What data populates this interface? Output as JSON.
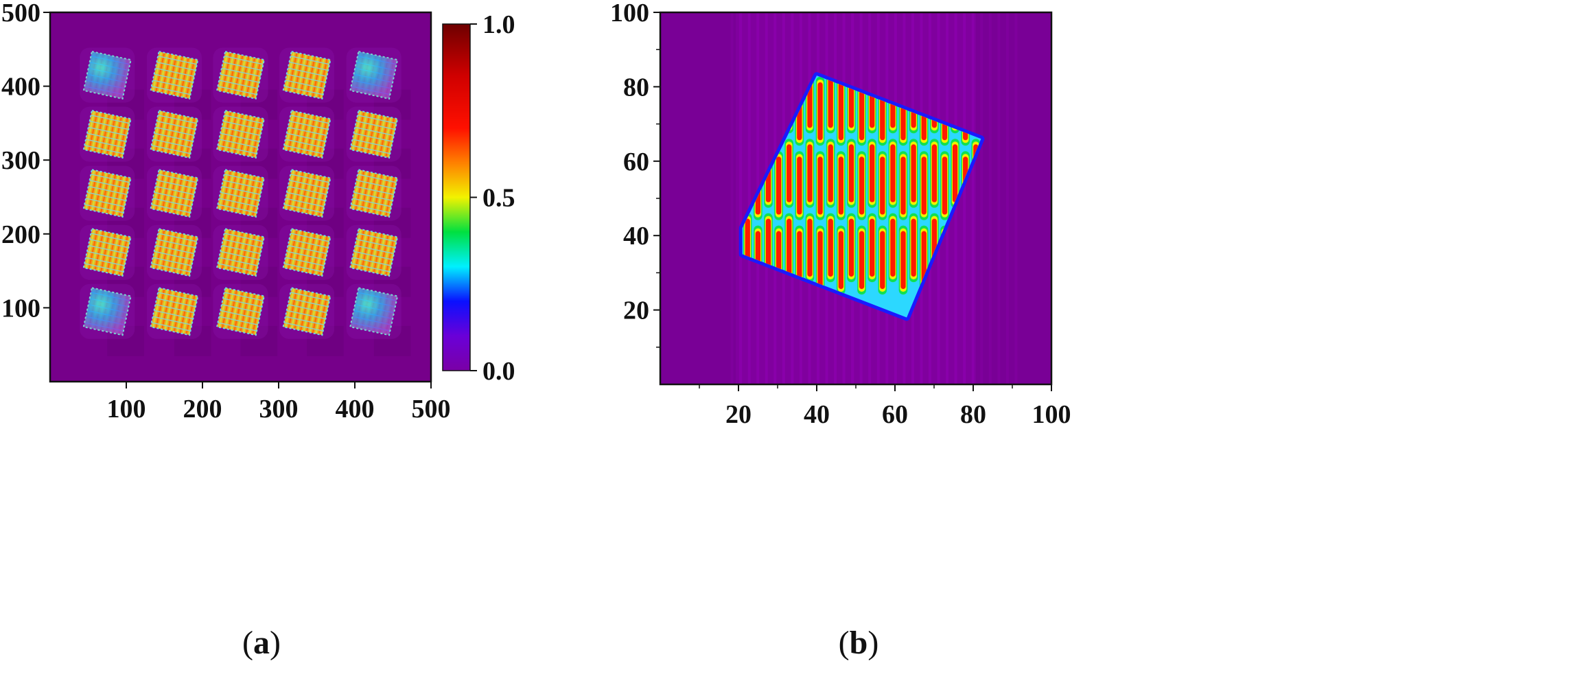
{
  "figure": {
    "panels": [
      {
        "label_open": "(",
        "label_letter": "a",
        "label_close": ")"
      },
      {
        "label_open": "(",
        "label_letter": "b",
        "label_close": ")"
      }
    ]
  },
  "chart_data": [
    {
      "type": "heatmap",
      "title": "",
      "xlabel": "",
      "ylabel": "",
      "xlim": [
        0,
        500
      ],
      "ylim": [
        0,
        500
      ],
      "x_ticks": [
        100,
        200,
        300,
        400,
        500
      ],
      "y_ticks": [
        100,
        200,
        300,
        400,
        500
      ],
      "x_tick_labels": [
        "100",
        "200",
        "300",
        "400",
        "500"
      ],
      "y_tick_labels": [
        "100",
        "200",
        "300",
        "400",
        "500"
      ],
      "grid": false,
      "background_value": 0.02,
      "spot_rows": [
        415,
        335,
        255,
        175,
        95
      ],
      "spot_cols": [
        75,
        163,
        250,
        337,
        425
      ],
      "spot_rotation_deg": -12,
      "spot_mean_value": 0.55,
      "corner_spot_mean_value": 0.3,
      "colorbar": {
        "min": 0.0,
        "max": 1.0,
        "ticks": [
          0.0,
          0.5,
          1.0
        ],
        "tick_labels": [
          "0.0",
          "0.5",
          "1.0"
        ],
        "colormap": [
          {
            "value": 0.0,
            "color": "#7a00a6"
          },
          {
            "value": 0.1,
            "color": "#6a00d8"
          },
          {
            "value": 0.2,
            "color": "#0a10ff"
          },
          {
            "value": 0.3,
            "color": "#00f0ff"
          },
          {
            "value": 0.4,
            "color": "#00e040"
          },
          {
            "value": 0.5,
            "color": "#f2f200"
          },
          {
            "value": 0.6,
            "color": "#ff8000"
          },
          {
            "value": 0.7,
            "color": "#ff1000"
          },
          {
            "value": 0.85,
            "color": "#d00000"
          },
          {
            "value": 1.0,
            "color": "#6e0000"
          }
        ]
      }
    },
    {
      "type": "heatmap",
      "title": "",
      "xlabel": "",
      "ylabel": "",
      "xlim": [
        0,
        100
      ],
      "ylim": [
        0,
        100
      ],
      "x_ticks": [
        20,
        40,
        60,
        80,
        100
      ],
      "y_ticks": [
        20,
        40,
        60,
        80,
        100
      ],
      "x_tick_labels": [
        "20",
        "40",
        "60",
        "80",
        "100"
      ],
      "y_tick_labels": [
        "20",
        "40",
        "60",
        "80",
        "100"
      ],
      "grid": false,
      "background_value": 0.05,
      "spot_polygon": [
        [
          21,
          42
        ],
        [
          40,
          83
        ],
        [
          82,
          66
        ],
        [
          63,
          18
        ],
        [
          21,
          35
        ]
      ],
      "fringe_count": 23,
      "fringe_peak_value": 0.75,
      "fringe_trough_value": 0.35
    }
  ]
}
